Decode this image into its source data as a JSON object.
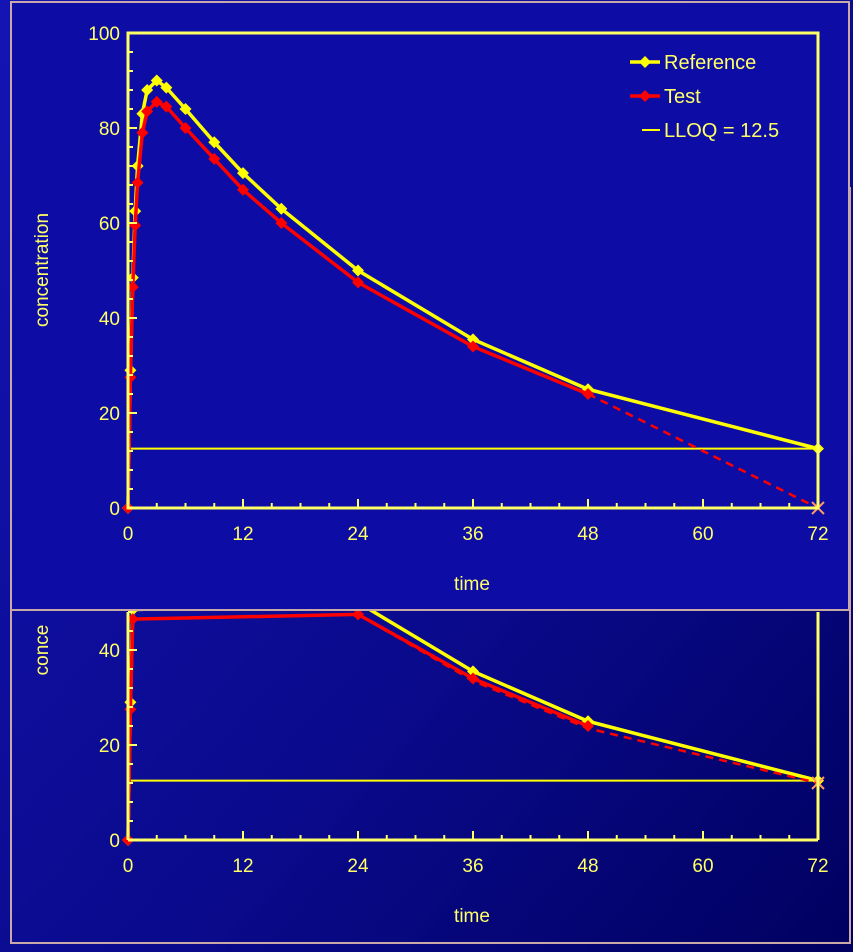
{
  "colors": {
    "reference": "#ffff00",
    "test": "#ff0000",
    "lloq": "#ffff00",
    "axis": "#ffff66",
    "panel_border": "#c9a8a8"
  },
  "chart_data": [
    {
      "type": "line",
      "panel": "front",
      "xlabel": "time",
      "ylabel": "concentration",
      "xlim": [
        0,
        72
      ],
      "ylim": [
        0,
        100
      ],
      "x_ticks": [
        0,
        12,
        24,
        36,
        48,
        60,
        72
      ],
      "y_ticks": [
        0,
        20,
        40,
        60,
        80,
        100
      ],
      "legend_position": "top-right",
      "legend": [
        "Reference",
        "Test",
        "LLOQ = 12.5"
      ],
      "lloq": 12.5,
      "series": [
        {
          "name": "Reference",
          "marker": "diamond",
          "x": [
            0,
            0.25,
            0.5,
            0.75,
            1,
            1.5,
            2,
            3,
            4,
            6,
            9,
            12,
            16,
            24,
            36,
            48,
            72
          ],
          "y": [
            0,
            29,
            48.5,
            62.5,
            72,
            83,
            88,
            90,
            88.5,
            84,
            77,
            70.5,
            63,
            50,
            35.5,
            25,
            12.5
          ]
        },
        {
          "name": "Test",
          "marker": "diamond",
          "x": [
            0,
            0.25,
            0.5,
            0.75,
            1,
            1.5,
            2,
            3,
            4,
            6,
            9,
            12,
            16,
            24,
            36,
            48
          ],
          "y": [
            0,
            27.5,
            46.5,
            59.5,
            68.5,
            79,
            83.5,
            85.5,
            84.5,
            80,
            73.5,
            67,
            60,
            47.5,
            34,
            24
          ]
        },
        {
          "name": "Test extrapolated",
          "style": "dashed",
          "x": [
            48,
            72
          ],
          "y": [
            24,
            0
          ]
        }
      ]
    },
    {
      "type": "line",
      "panel": "back",
      "xlabel": "time",
      "ylabel": "conce",
      "xlim": [
        0,
        72
      ],
      "ylim": [
        0,
        100
      ],
      "x_ticks": [
        0,
        12,
        24,
        36,
        48,
        60,
        72
      ],
      "y_ticks": [
        0,
        20,
        40
      ],
      "lloq": 12.5,
      "series": [
        {
          "name": "Reference",
          "marker": "diamond",
          "x": [
            0,
            0.25,
            0.5,
            24,
            36,
            48,
            72
          ],
          "y": [
            0,
            29,
            48.5,
            50,
            35.5,
            25,
            12.5
          ]
        },
        {
          "name": "Test",
          "marker": "diamond",
          "x": [
            0,
            0.25,
            0.5,
            24,
            36,
            48
          ],
          "y": [
            0,
            27.5,
            46.5,
            47.5,
            34,
            24
          ]
        },
        {
          "name": "Test extrapolated",
          "style": "dashed",
          "x": [
            24,
            36,
            48,
            72
          ],
          "y": [
            47.5,
            33.5,
            23.5,
            12
          ]
        }
      ]
    }
  ]
}
